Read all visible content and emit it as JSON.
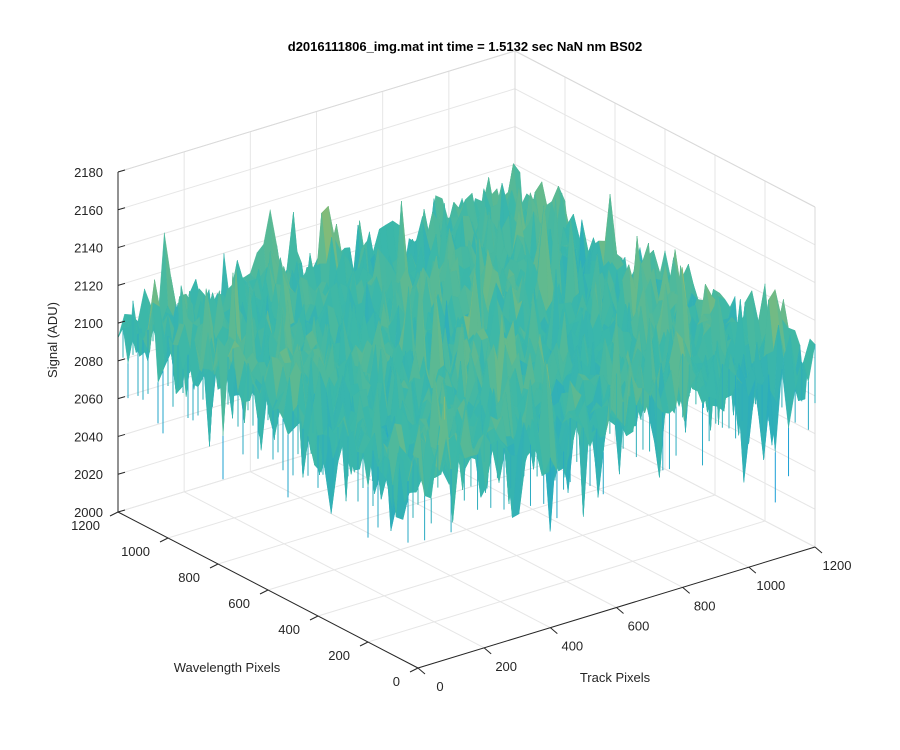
{
  "figure": {
    "background": "#ffffff"
  },
  "chart_data": {
    "type": "surface",
    "title": "d2016111806_img.mat int time = 1.5132 sec  NaN nm BS02",
    "xlabel": "Track Pixels",
    "ylabel": "Wavelength Pixels",
    "zlabel": "Signal (ADU)",
    "xlim": [
      0,
      1200
    ],
    "ylim": [
      0,
      1200
    ],
    "zlim": [
      2000,
      2180
    ],
    "xticks": [
      0,
      200,
      400,
      600,
      800,
      1000,
      1200
    ],
    "yticks": [
      0,
      200,
      400,
      600,
      800,
      1000,
      1200
    ],
    "zticks": [
      2000,
      2020,
      2040,
      2060,
      2080,
      2100,
      2120,
      2140,
      2160,
      2180
    ],
    "xtick_labels": [
      "0",
      "200",
      "400",
      "600",
      "800",
      "1000",
      "1200"
    ],
    "ytick_labels": [
      "0",
      "200",
      "400",
      "600",
      "800",
      "1000",
      "1200"
    ],
    "ztick_labels": [
      "2000",
      "2020",
      "2040",
      "2060",
      "2080",
      "2100",
      "2120",
      "2140",
      "2160",
      "2180"
    ],
    "surface": {
      "x_range": [
        0,
        1200
      ],
      "y_range": [
        0,
        1200
      ],
      "mean_signal": 2100,
      "min_signal": 2040,
      "max_signal": 2160,
      "colormap": "parula",
      "noise": "random per pixel"
    },
    "grid": true,
    "box": true,
    "view": "3d-oblique",
    "colors": {
      "axis": "#262626",
      "grid": "#e6e6e6",
      "low": "#1a9fd6",
      "mid": "#3cb8a8",
      "high": "#e0bf3a"
    }
  }
}
